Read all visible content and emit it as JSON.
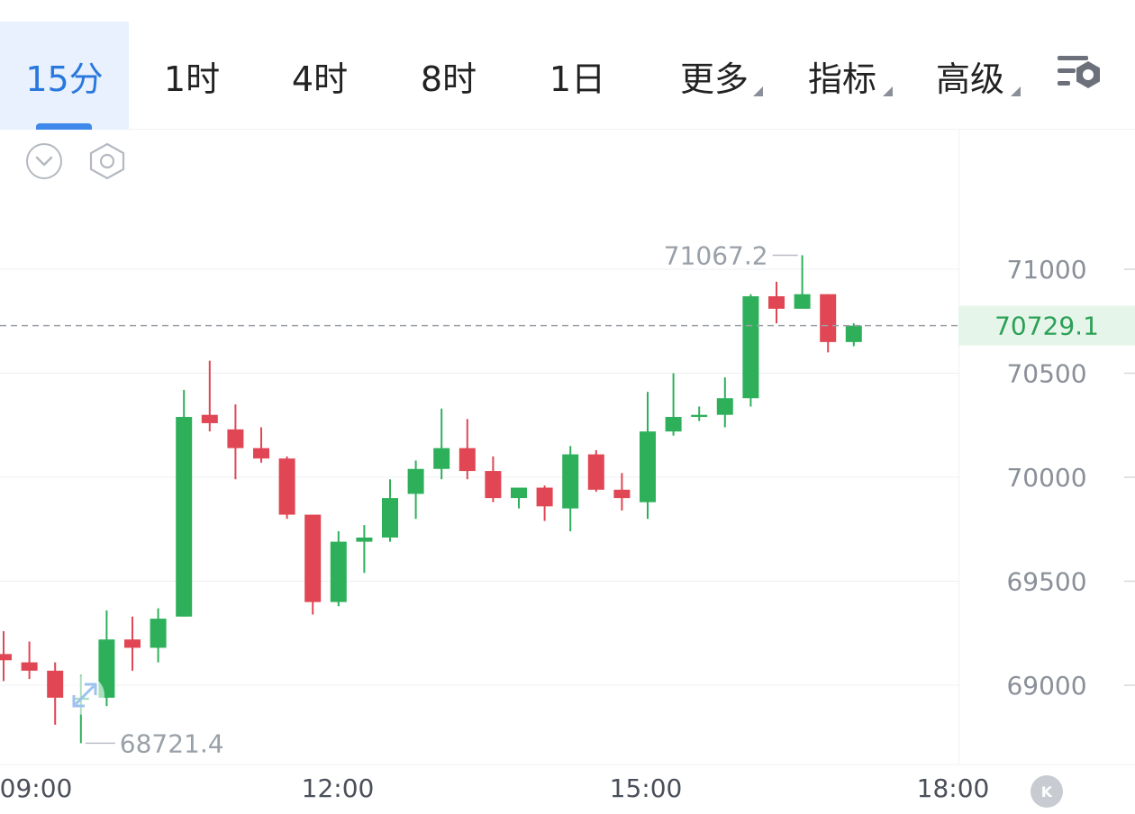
{
  "tabs": [
    {
      "label": "15分",
      "active": true
    },
    {
      "label": "1时",
      "active": false
    },
    {
      "label": "4时",
      "active": false
    },
    {
      "label": "8时",
      "active": false
    },
    {
      "label": "1日",
      "active": false
    },
    {
      "label": "更多",
      "dropdown": true
    },
    {
      "label": "指标",
      "dropdown": true
    },
    {
      "label": "高级",
      "dropdown": true
    }
  ],
  "icons": {
    "settings": "chart-settings-icon",
    "collapse": "chevron-down-circle-icon",
    "indicator": "hexagon-settings-icon",
    "expand": "expand-arrows-icon",
    "logo": "k-logo-icon"
  },
  "colors": {
    "up": "#2eb05b",
    "down": "#e04653",
    "accent": "#2a78de",
    "current_price_bg": "#e6f5ea",
    "current_price_text": "#2ca056"
  },
  "chart_data": {
    "type": "candlestick",
    "interval": "15分",
    "y_ticks": [
      "71000",
      "70500",
      "70000",
      "69500",
      "69000"
    ],
    "y_tick_values": [
      71000,
      70500,
      70000,
      69500,
      69000
    ],
    "ylim": [
      68700,
      71300
    ],
    "x_ticks": [
      "09:00",
      "12:00",
      "15:00",
      "18:00"
    ],
    "current_price": "70729.1",
    "high_label": "71067.2",
    "low_label": "68721.4",
    "candles": [
      {
        "open": 69150,
        "high": 69260,
        "low": 69020,
        "close": 69120
      },
      {
        "open": 69110,
        "high": 69210,
        "low": 69030,
        "close": 69070
      },
      {
        "open": 69070,
        "high": 69110,
        "low": 68810,
        "close": 68940
      },
      {
        "open": 68930,
        "high": 69050,
        "low": 68721.4,
        "close": 68940
      },
      {
        "open": 68940,
        "high": 69360,
        "low": 68900,
        "close": 69220
      },
      {
        "open": 69220,
        "high": 69330,
        "low": 69070,
        "close": 69180
      },
      {
        "open": 69180,
        "high": 69370,
        "low": 69110,
        "close": 69320
      },
      {
        "open": 69330,
        "high": 70420,
        "low": 69330,
        "close": 70290
      },
      {
        "open": 70300,
        "high": 70560,
        "low": 70220,
        "close": 70260
      },
      {
        "open": 70230,
        "high": 70350,
        "low": 69990,
        "close": 70140
      },
      {
        "open": 70140,
        "high": 70240,
        "low": 70070,
        "close": 70090
      },
      {
        "open": 70090,
        "high": 70100,
        "low": 69800,
        "close": 69820
      },
      {
        "open": 69820,
        "high": 69820,
        "low": 69340,
        "close": 69400
      },
      {
        "open": 69400,
        "high": 69740,
        "low": 69380,
        "close": 69690
      },
      {
        "open": 69690,
        "high": 69770,
        "low": 69540,
        "close": 69710
      },
      {
        "open": 69710,
        "high": 69990,
        "low": 69690,
        "close": 69900
      },
      {
        "open": 69920,
        "high": 70080,
        "low": 69800,
        "close": 70040
      },
      {
        "open": 70040,
        "high": 70330,
        "low": 69990,
        "close": 70140
      },
      {
        "open": 70140,
        "high": 70280,
        "low": 69990,
        "close": 70030
      },
      {
        "open": 70030,
        "high": 70100,
        "low": 69880,
        "close": 69900
      },
      {
        "open": 69900,
        "high": 69950,
        "low": 69850,
        "close": 69950
      },
      {
        "open": 69950,
        "high": 69960,
        "low": 69790,
        "close": 69860
      },
      {
        "open": 69850,
        "high": 70150,
        "low": 69740,
        "close": 70110
      },
      {
        "open": 70110,
        "high": 70130,
        "low": 69930,
        "close": 69940
      },
      {
        "open": 69940,
        "high": 70020,
        "low": 69840,
        "close": 69900
      },
      {
        "open": 69880,
        "high": 70410,
        "low": 69800,
        "close": 70220
      },
      {
        "open": 70220,
        "high": 70500,
        "low": 70200,
        "close": 70290
      },
      {
        "open": 70290,
        "high": 70340,
        "low": 70270,
        "close": 70300
      },
      {
        "open": 70300,
        "high": 70480,
        "low": 70240,
        "close": 70380
      },
      {
        "open": 70380,
        "high": 70880,
        "low": 70340,
        "close": 70870
      },
      {
        "open": 70870,
        "high": 70940,
        "low": 70740,
        "close": 70810
      },
      {
        "open": 70810,
        "high": 71067.2,
        "low": 70810,
        "close": 70880
      },
      {
        "open": 70880,
        "high": 70880,
        "low": 70600,
        "close": 70650
      },
      {
        "open": 70650,
        "high": 70740,
        "low": 70630,
        "close": 70729.1
      }
    ]
  }
}
